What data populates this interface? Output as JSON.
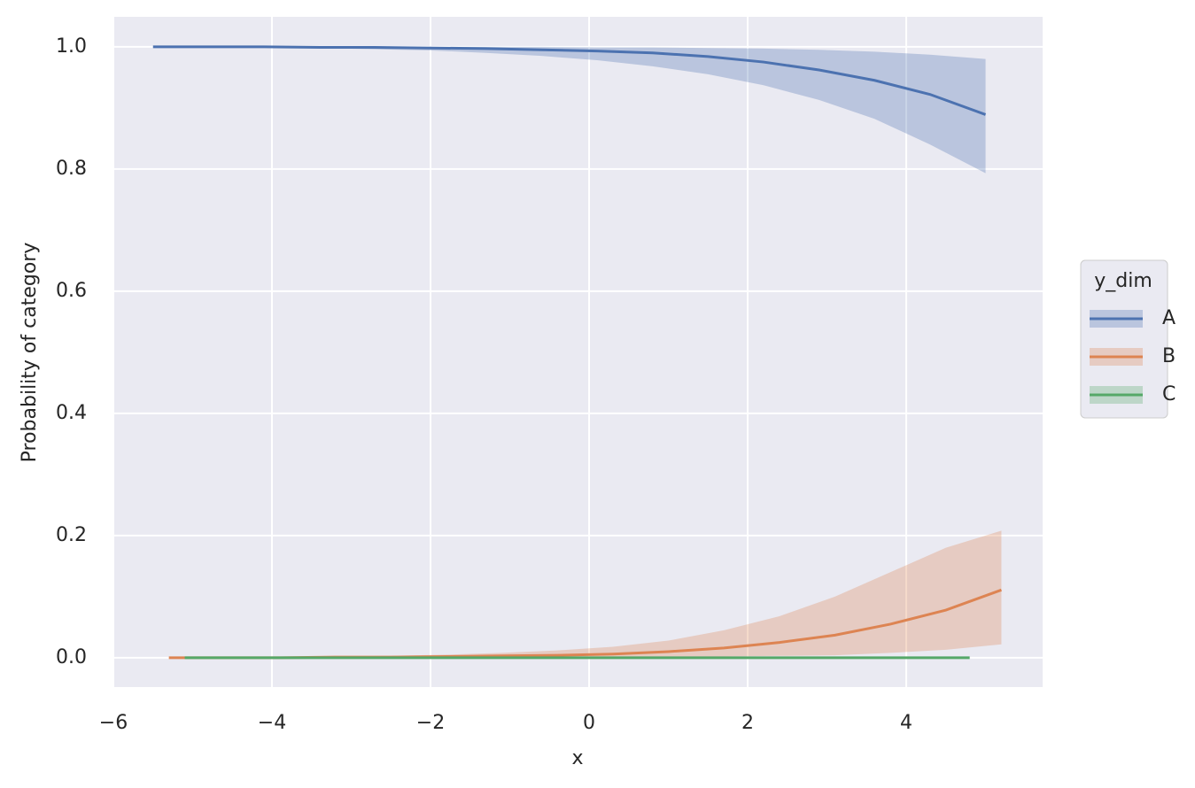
{
  "chart_data": {
    "type": "line",
    "xlabel": "x",
    "ylabel": "Probability of category",
    "xlim": [
      -6,
      5.72
    ],
    "ylim": [
      -0.048,
      1.049
    ],
    "xticks": [
      {
        "value": -6,
        "label": "−6"
      },
      {
        "value": -4,
        "label": "−4"
      },
      {
        "value": -2,
        "label": "−2"
      },
      0,
      2,
      4
    ],
    "yticks": [
      {
        "value": 0,
        "label": "0.0"
      },
      0.2,
      0.4,
      0.6,
      0.8,
      {
        "value": 1,
        "label": "1.0"
      }
    ],
    "grid": true,
    "legend_title": "y_dim",
    "legend_position": "outside right",
    "series": [
      {
        "name": "A",
        "color": "#4c72b0",
        "x": [
          -5.5,
          -4.8,
          -4.1,
          -3.4,
          -2.7,
          -2.0,
          -1.3,
          -0.6,
          0.1,
          0.8,
          1.5,
          2.2,
          2.9,
          3.6,
          4.3,
          5.0
        ],
        "values": [
          1.0,
          1.0,
          1.0,
          0.999,
          0.999,
          0.998,
          0.997,
          0.995,
          0.993,
          0.99,
          0.984,
          0.975,
          0.962,
          0.945,
          0.922,
          0.889
        ],
        "lower": [
          1.0,
          1.0,
          0.999,
          0.998,
          0.996,
          0.994,
          0.99,
          0.985,
          0.978,
          0.968,
          0.955,
          0.937,
          0.913,
          0.882,
          0.84,
          0.793
        ],
        "upper": [
          1,
          1,
          1,
          1,
          1,
          1,
          1,
          1,
          0.999,
          0.999,
          0.998,
          0.997,
          0.995,
          0.992,
          0.987,
          0.98
        ]
      },
      {
        "name": "B",
        "color": "#dd8452",
        "x": [
          -5.3,
          -4.6,
          -3.9,
          -3.2,
          -2.5,
          -1.8,
          -1.1,
          -0.4,
          0.3,
          1.0,
          1.7,
          2.4,
          3.1,
          3.8,
          4.5,
          5.2
        ],
        "values": [
          0,
          0,
          0,
          0.001,
          0.001,
          0.002,
          0.003,
          0.004,
          0.006,
          0.01,
          0.016,
          0.025,
          0.037,
          0.055,
          0.078,
          0.111
        ],
        "lower": [
          0,
          0,
          0,
          0,
          0,
          0,
          0,
          0,
          0.001,
          0.001,
          0.002,
          0.003,
          0.004,
          0.008,
          0.013,
          0.022
        ],
        "upper": [
          0,
          0,
          0.001,
          0.002,
          0.003,
          0.005,
          0.008,
          0.012,
          0.018,
          0.028,
          0.045,
          0.068,
          0.1,
          0.14,
          0.18,
          0.208
        ]
      },
      {
        "name": "C",
        "color": "#55a868",
        "x": [
          -5.1,
          -3.0,
          -1.0,
          1.0,
          3.0,
          4.8
        ],
        "values": [
          0,
          0,
          0,
          0,
          0,
          0
        ],
        "lower": [
          0,
          0,
          0,
          0,
          0,
          0
        ],
        "upper": [
          0,
          0,
          0,
          0,
          0,
          0
        ]
      }
    ]
  }
}
